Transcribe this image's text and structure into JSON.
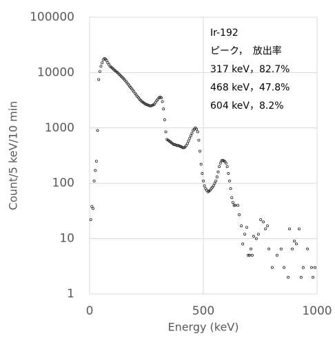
{
  "chart_data": {
    "type": "scatter",
    "x_label": "Energy (keV)",
    "y_label": "Count/5 keV/10 min",
    "annotations": [
      "Ir-192",
      "ピーク，　放出率",
      "317 keV，82.7%",
      "468 keV，47.8%",
      "604 keV，8.2%"
    ],
    "log_y": true,
    "grid": true,
    "marker_color": "#222222",
    "xlim": [
      0,
      1000
    ],
    "xticks": [
      0,
      500,
      1000
    ],
    "ylim": [
      1,
      100000
    ],
    "yticks": [
      1,
      10,
      100,
      1000,
      10000,
      100000
    ],
    "x": [
      5,
      10,
      15,
      20,
      25,
      30,
      35,
      40,
      45,
      50,
      55,
      60,
      65,
      70,
      75,
      80,
      85,
      90,
      95,
      100,
      105,
      110,
      115,
      120,
      125,
      130,
      135,
      140,
      145,
      150,
      155,
      160,
      165,
      170,
      175,
      180,
      185,
      190,
      195,
      200,
      205,
      210,
      215,
      220,
      225,
      230,
      235,
      240,
      245,
      250,
      255,
      260,
      265,
      270,
      275,
      280,
      285,
      290,
      295,
      300,
      305,
      310,
      315,
      320,
      325,
      330,
      335,
      340,
      345,
      350,
      355,
      360,
      365,
      370,
      375,
      380,
      385,
      390,
      395,
      400,
      405,
      410,
      415,
      420,
      425,
      430,
      435,
      440,
      445,
      450,
      455,
      460,
      465,
      470,
      475,
      480,
      485,
      490,
      495,
      500,
      505,
      510,
      515,
      520,
      525,
      530,
      535,
      540,
      545,
      550,
      555,
      560,
      565,
      570,
      575,
      580,
      585,
      590,
      595,
      600,
      605,
      610,
      615,
      620,
      625,
      630,
      635,
      640,
      652,
      658,
      667,
      673,
      682,
      691,
      697,
      703,
      709,
      715,
      721,
      733,
      742,
      752,
      764,
      773,
      782,
      788,
      803,
      824,
      842,
      855,
      873,
      879,
      891,
      900,
      909,
      921,
      930,
      939,
      958,
      976,
      982,
      991
    ],
    "values": [
      22,
      38,
      35,
      110,
      170,
      250,
      900,
      7500,
      10500,
      13000,
      15000,
      17000,
      18000,
      17500,
      16500,
      15000,
      14000,
      13000,
      12500,
      12000,
      11500,
      11000,
      10600,
      10200,
      9800,
      9300,
      8900,
      8500,
      8100,
      7700,
      7300,
      6900,
      6500,
      6100,
      5700,
      5400,
      5100,
      4800,
      4500,
      4200,
      3950,
      3700,
      3500,
      3300,
      3150,
      3000,
      2900,
      2800,
      2700,
      2650,
      2600,
      2550,
      2500,
      2500,
      2550,
      2600,
      2700,
      2900,
      3100,
      3300,
      3500,
      3600,
      3500,
      3000,
      2200,
      1400,
      850,
      620,
      600,
      580,
      560,
      540,
      520,
      500,
      500,
      490,
      480,
      480,
      470,
      460,
      450,
      440,
      440,
      450,
      480,
      520,
      580,
      650,
      720,
      800,
      900,
      950,
      1000,
      950,
      850,
      600,
      380,
      220,
      150,
      110,
      90,
      80,
      75,
      70,
      72,
      75,
      80,
      85,
      90,
      100,
      110,
      130,
      160,
      200,
      230,
      255,
      260,
      255,
      245,
      230,
      200,
      150,
      110,
      80,
      55,
      45,
      40,
      40,
      40,
      27,
      17,
      8,
      12,
      16,
      5,
      5,
      6.5,
      5,
      11,
      10,
      12,
      22,
      20,
      15,
      17,
      6.5,
      3,
      5,
      6.5,
      3,
      2,
      15,
      6.5,
      9,
      8,
      15,
      2,
      3,
      6.5,
      3,
      2,
      3
    ]
  }
}
